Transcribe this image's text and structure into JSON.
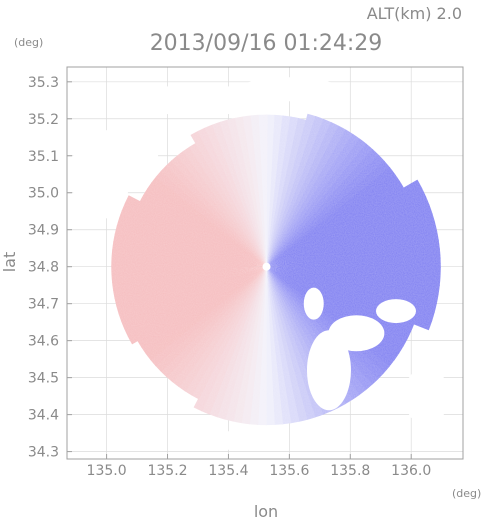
{
  "chart_data": {
    "type": "heatmap",
    "title": "2013/09/16 01:24:29",
    "altitude_label": "ALT(km) 2.0",
    "xlabel": "lon",
    "ylabel": "lat",
    "x_unit": "(deg)",
    "y_unit": "(deg)",
    "xlim": [
      134.87,
      136.17
    ],
    "ylim": [
      34.28,
      35.34
    ],
    "x_ticks": [
      "135.0",
      "135.2",
      "135.4",
      "135.6",
      "135.8",
      "136.0"
    ],
    "x_tick_values": [
      135.0,
      135.2,
      135.4,
      135.6,
      135.8,
      136.0
    ],
    "y_ticks": [
      "34.3",
      "34.4",
      "34.5",
      "34.6",
      "34.7",
      "34.8",
      "34.9",
      "35.0",
      "35.1",
      "35.2",
      "35.3"
    ],
    "y_tick_values": [
      34.3,
      34.4,
      34.5,
      34.6,
      34.7,
      34.8,
      34.9,
      35.0,
      35.1,
      35.2,
      35.3
    ],
    "radar_center": [
      135.525,
      34.8
    ],
    "radar_range_deg": 0.52,
    "colors": {
      "approaching": "#7f7ff2",
      "receding": "#f7b4b4",
      "neutral": "#f3f3fb",
      "frame": "#a0a0a0",
      "grid": "#dcdcdc",
      "text": "#8a8a8a"
    }
  }
}
